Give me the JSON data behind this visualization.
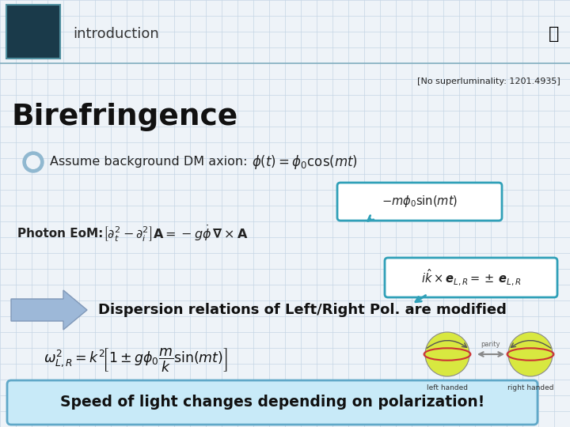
{
  "background_color": "#eef3f8",
  "grid_color": "#c5d5e5",
  "title_text": "introduction",
  "title_box_color": "#1a3a4a",
  "title_box_border": "#5090a0",
  "header_line_color": "#7aaabb",
  "birefringence_text": "Birefringence",
  "no_superlum_text": "[No superluminality: 1201.4935]",
  "bullet_text": "Assume background DM axion:",
  "bullet_formula": "$\\phi(t) = \\phi_0 \\cos(mt)$",
  "callout1_text": "$-m\\phi_0 \\sin(mt)$",
  "photon_label": "Photon EoM:",
  "photon_formula": "$\\left[\\partial_t^2 - \\partial_i^2\\right]\\mathbf{A} = -g\\dot{\\phi}\\,\\boldsymbol{\\nabla} \\times \\mathbf{A}$",
  "callout2_text": "$i\\hat{k} \\times \\boldsymbol{e}_{L,R} = \\pm\\, \\boldsymbol{e}_{L,R}$",
  "dispersion_text": "Dispersion relations of Left/Right Pol. are modified",
  "dispersion_formula": "$\\omega_{L,R}^2 = k^2\\!\\left[1 \\pm g\\phi_0 \\dfrac{m}{k}\\sin(mt)\\right]$",
  "footer_text": "Speed of light changes depending on polarization!",
  "footer_bg_top": "#c8eaf8",
  "footer_bg_bot": "#a0d8f0",
  "footer_border": "#60a8c8",
  "arrow_color": "#9db8d8",
  "arrow_edge": "#8098b8",
  "callout_bg": "#ffffff",
  "callout_border": "#30a0b8",
  "bullet_color": "#90b8d0",
  "bullet_inner": "#eef3f8"
}
